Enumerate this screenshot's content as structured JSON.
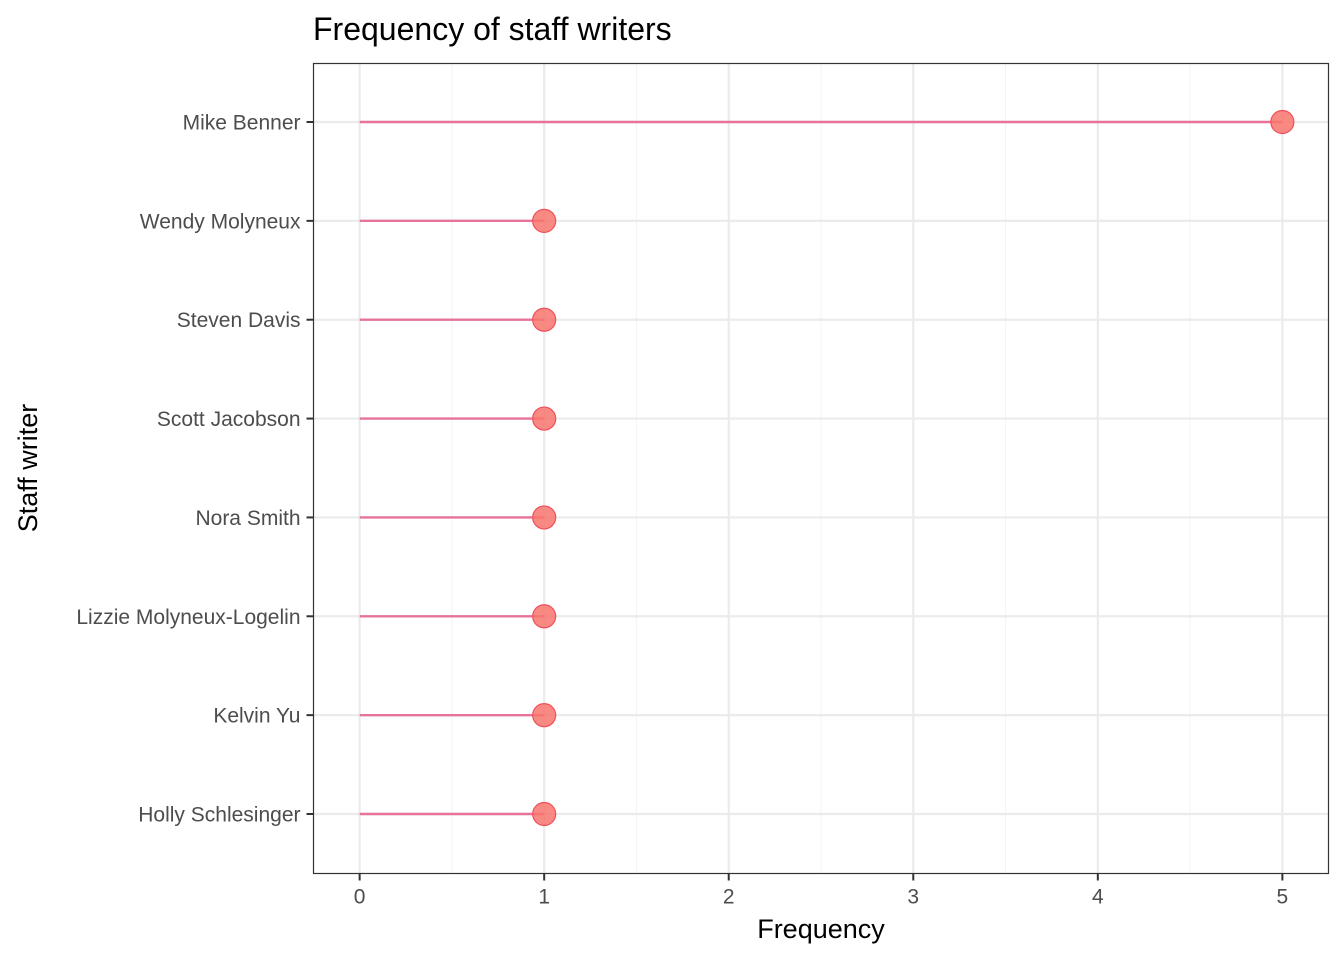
{
  "chart_data": {
    "type": "lollipop",
    "title": "Frequency of staff writers",
    "xlabel": "Frequency",
    "ylabel": "Staff writer",
    "xlim": [
      -0.25,
      5.25
    ],
    "x_ticks": [
      "0",
      "1",
      "2",
      "3",
      "4",
      "5"
    ],
    "categories": [
      "Mike Benner",
      "Wendy Molyneux",
      "Steven Davis",
      "Scott Jacobson",
      "Nora Smith",
      "Lizzie Molyneux-Logelin",
      "Kelvin Yu",
      "Holly Schlesinger"
    ],
    "values": [
      5,
      1,
      1,
      1,
      1,
      1,
      1,
      1
    ],
    "grid": true,
    "legend": "none",
    "colors": {
      "segment": "#e7739c",
      "point_fill": "#f8766d",
      "point_stroke": "#f04f5a",
      "grid_major": "#ebebeb",
      "grid_minor": "#f4f4f4",
      "panel_border": "#333333"
    }
  }
}
